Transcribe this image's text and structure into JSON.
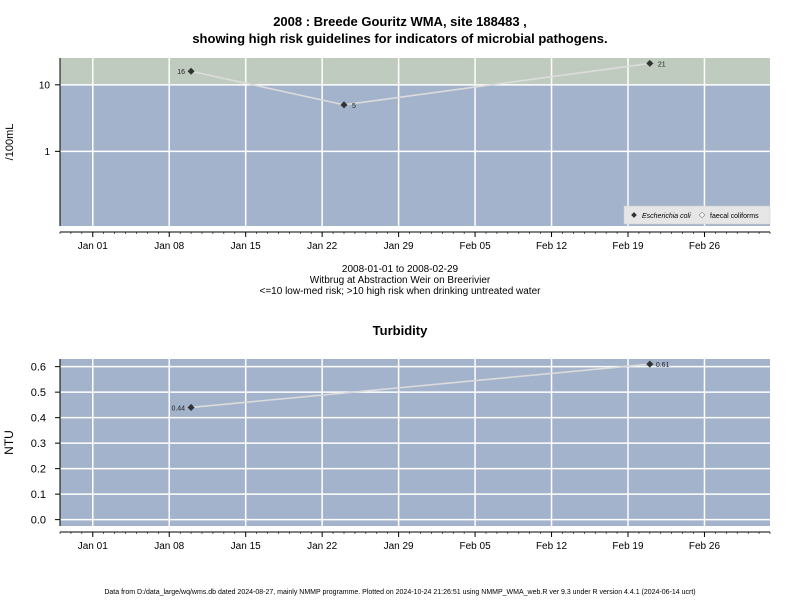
{
  "chart_data": [
    {
      "type": "scatter",
      "title_line1": "2008 : Breede Gouritz WMA, site 188483 ,",
      "title_line2": "showing high risk guidelines for indicators of microbial pathogens.",
      "ylabel": "/100mL",
      "y_scale": "log",
      "y_ticks": [
        "1",
        "10"
      ],
      "x_ticks": [
        "Jan 01",
        "Jan 08",
        "Jan 15",
        "Jan 22",
        "Jan 29",
        "Feb 05",
        "Feb 12",
        "Feb 19",
        "Feb 26"
      ],
      "x_range": [
        "2007-12-29",
        "2008-03-03"
      ],
      "high_risk_threshold": 10,
      "series": [
        {
          "name": "Escherichia coli",
          "points": [
            {
              "x": "2008-01-10",
              "y": 16,
              "label": "16"
            },
            {
              "x": "2008-01-24",
              "y": 5,
              "label": "5"
            },
            {
              "x": "2008-02-21",
              "y": 21,
              "label": "21"
            }
          ]
        }
      ],
      "legend": {
        "placement": "bottom-right",
        "entries": [
          "Escherichia coli",
          "faecal coliforms"
        ]
      },
      "caption_line1": "2008-01-01 to 2008-02-29",
      "caption_line2": "Witbrug at Abstraction Weir on Breerivier",
      "caption_line3": "<=10 low-med risk; >10 high risk when drinking untreated water",
      "colors": {
        "low_band": "#a3b3cc",
        "high_band": "#c0cbbf",
        "line": "#dcdcdc",
        "marker": "#333333",
        "grid": "#ffffff"
      }
    },
    {
      "type": "line",
      "title": "Turbidity",
      "ylabel": "NTU",
      "y_ticks": [
        "0.0",
        "0.1",
        "0.2",
        "0.3",
        "0.4",
        "0.5",
        "0.6"
      ],
      "ylim": [
        -0.025,
        0.63
      ],
      "x_ticks": [
        "Jan 01",
        "Jan 08",
        "Jan 15",
        "Jan 22",
        "Jan 29",
        "Feb 05",
        "Feb 12",
        "Feb 19",
        "Feb 26"
      ],
      "x_range": [
        "2007-12-29",
        "2008-03-03"
      ],
      "series": [
        {
          "points": [
            {
              "x": "2008-01-10",
              "y": 0.44,
              "label": "0.44"
            },
            {
              "x": "2008-02-21",
              "y": 0.61,
              "label": "0.61"
            }
          ]
        }
      ],
      "colors": {
        "panel": "#a3b3cc",
        "line": "#dcdcdc",
        "marker": "#333333",
        "grid": "#ffffff"
      }
    }
  ],
  "footer": "Data from D:/data_large/wq/wms.db dated 2024-08-27, mainly NMMP programme. Plotted on 2024-10-24 21:26:51 using NMMP_WMA_web.R ver 9.3 under R version 4.4.1 (2024-06-14 ucrt)"
}
